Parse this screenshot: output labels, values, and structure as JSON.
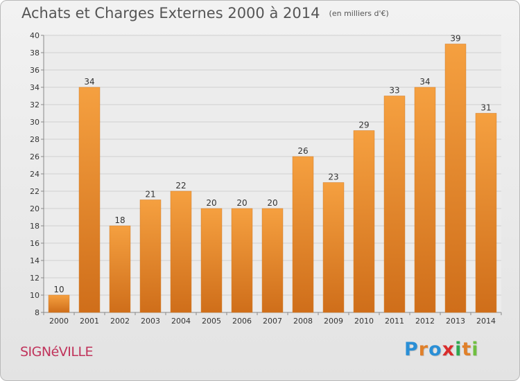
{
  "header": {
    "title": "Achats et Charges Externes 2000 à 2014",
    "unit": "(en milliers d'€)"
  },
  "footer": {
    "city": "SIGNéVILLE",
    "brand": [
      "P",
      "r",
      "o",
      "x",
      "i",
      "t",
      "i"
    ],
    "brand_colors": [
      "#2a8fd6",
      "#e0802a",
      "#2a8fd6",
      "#d92c2c",
      "#2fa84f",
      "#e0802a",
      "#6fbf3f"
    ]
  },
  "colors": {
    "bar_top": "#f5a040",
    "bar_bottom": "#cf6e1a",
    "grid": "#cfcfcf",
    "axis_text": "#333333"
  },
  "chart_data": {
    "type": "bar",
    "title": "Achats et Charges Externes 2000 à 2014",
    "categories": [
      "2000",
      "2001",
      "2002",
      "2003",
      "2004",
      "2005",
      "2006",
      "2007",
      "2008",
      "2009",
      "2010",
      "2011",
      "2012",
      "2013",
      "2014"
    ],
    "values": [
      10,
      34,
      18,
      21,
      22,
      20,
      20,
      20,
      26,
      23,
      29,
      33,
      34,
      39,
      31
    ],
    "ylim": [
      8,
      40
    ],
    "yticks": [
      8,
      10,
      12,
      14,
      16,
      18,
      20,
      22,
      24,
      26,
      28,
      30,
      32,
      34,
      36,
      38,
      40
    ],
    "grid": true
  }
}
